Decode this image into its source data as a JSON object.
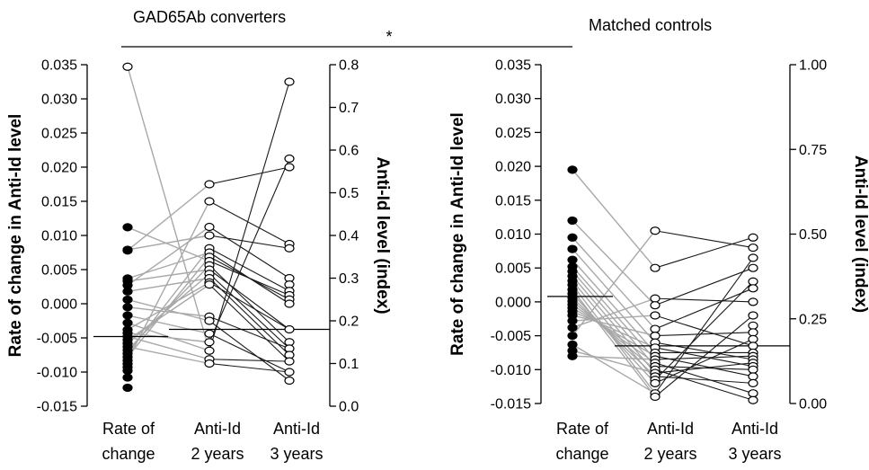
{
  "chart_data": [
    {
      "type": "scatter",
      "title": "GAD65Ab converters",
      "categories": [
        "Rate of\nchange",
        "Anti-Id\n2 years",
        "Anti-Id\n3 years"
      ],
      "ylabel": "Rate of change in Anti-Id level",
      "ylim": [
        -0.015,
        0.035
      ],
      "yticks": [
        "0.035",
        "0.030",
        "0.025",
        "0.020",
        "0.015",
        "0.010",
        "0.005",
        "0.000",
        "-0.005",
        "-0.010",
        "-0.015"
      ],
      "y2label": "Anti-Id level (index)",
      "y2lim": [
        0.0,
        0.8
      ],
      "y2ticks": [
        "0.8",
        "0.7",
        "0.6",
        "0.5",
        "0.4",
        "0.3",
        "0.2",
        "0.1",
        "0.0"
      ],
      "rate_of_change": [
        0.0347,
        0.0112,
        0.0079,
        0.0078,
        0.0037,
        0.0033,
        0.0027,
        0.0018,
        0.0006,
        -0.0005,
        -0.0017,
        -0.0028,
        -0.0038,
        -0.0043,
        -0.0048,
        -0.0053,
        -0.0058,
        -0.0063,
        -0.0068,
        -0.0073,
        -0.0078,
        -0.0083,
        -0.0088,
        -0.0093,
        -0.0098,
        -0.0108,
        -0.0123
      ],
      "rate_median": -0.0048,
      "anti_id_2_years": [
        0.52,
        0.48,
        0.42,
        0.4,
        0.37,
        0.36,
        0.35,
        0.34,
        0.33,
        0.32,
        0.31,
        0.3,
        0.29,
        0.285,
        0.21,
        0.2,
        0.17,
        0.15,
        0.13,
        0.11,
        0.1
      ],
      "anti_id_3_years": [
        0.76,
        0.58,
        0.56,
        0.38,
        0.37,
        0.3,
        0.285,
        0.27,
        0.26,
        0.25,
        0.24,
        0.18,
        0.15,
        0.135,
        0.12,
        0.105,
        0.08,
        0.06
      ],
      "anti_id_median": 0.18,
      "gray_links": [
        [
          0,
          18
        ],
        [
          1,
          7
        ],
        [
          2,
          3
        ],
        [
          3,
          0
        ],
        [
          4,
          5
        ],
        [
          5,
          9
        ],
        [
          6,
          2
        ],
        [
          7,
          11
        ],
        [
          8,
          15
        ],
        [
          9,
          14
        ],
        [
          10,
          16
        ],
        [
          11,
          18
        ],
        [
          12,
          12
        ],
        [
          13,
          17
        ],
        [
          14,
          19
        ],
        [
          15,
          13
        ],
        [
          16,
          10
        ],
        [
          17,
          20
        ],
        [
          18,
          8
        ],
        [
          19,
          4
        ],
        [
          20,
          6
        ],
        [
          21,
          1
        ]
      ],
      "black_links": [
        [
          0,
          2
        ],
        [
          1,
          3
        ],
        [
          2,
          5
        ],
        [
          3,
          4
        ],
        [
          4,
          7
        ],
        [
          5,
          10
        ],
        [
          6,
          9
        ],
        [
          7,
          8
        ],
        [
          8,
          12
        ],
        [
          9,
          11
        ],
        [
          10,
          13
        ],
        [
          11,
          14
        ],
        [
          12,
          11
        ],
        [
          13,
          15
        ],
        [
          14,
          13
        ],
        [
          15,
          17
        ],
        [
          16,
          16
        ],
        [
          17,
          1
        ],
        [
          18,
          0
        ],
        [
          19,
          15
        ],
        [
          20,
          16
        ]
      ]
    },
    {
      "type": "scatter",
      "title": "Matched controls",
      "categories": [
        "Rate of\nchange",
        "Anti-Id\n2 years",
        "Anti-Id\n3 years"
      ],
      "ylabel": "Rate of change in Anti-Id level",
      "ylim": [
        -0.015,
        0.035
      ],
      "yticks": [
        "0.035",
        "0.030",
        "0.025",
        "0.020",
        "0.015",
        "0.010",
        "0.005",
        "0.000",
        "-0.005",
        "-0.010",
        "-0.015"
      ],
      "y2label": "Anti-Id level (index)",
      "y2lim": [
        0.0,
        1.0
      ],
      "y2ticks": [
        "1.00",
        "0.75",
        "0.50",
        "0.25",
        "0.00"
      ],
      "rate_of_change": [
        0.0195,
        0.012,
        0.0095,
        0.0078,
        0.0062,
        0.0052,
        0.0045,
        0.0038,
        0.0031,
        0.0025,
        0.0018,
        0.0012,
        0.0006,
        0.0001,
        -0.0004,
        -0.0009,
        -0.0014,
        -0.002,
        -0.0028,
        -0.0038,
        -0.005,
        -0.0063,
        -0.0072,
        -0.008
      ],
      "rate_median": 0.0008,
      "anti_id_2_years": [
        0.51,
        0.4,
        0.31,
        0.29,
        0.26,
        0.22,
        0.2,
        0.18,
        0.165,
        0.15,
        0.14,
        0.13,
        0.12,
        0.11,
        0.1,
        0.09,
        0.08,
        0.07,
        0.06,
        0.03,
        0.02
      ],
      "anti_id_3_years": [
        0.49,
        0.46,
        0.43,
        0.4,
        0.36,
        0.34,
        0.3,
        0.26,
        0.23,
        0.21,
        0.19,
        0.17,
        0.15,
        0.14,
        0.13,
        0.12,
        0.11,
        0.1,
        0.08,
        0.06,
        0.03,
        0.01
      ],
      "anti_id_median": 0.17,
      "gray_links": [
        [
          0,
          1
        ],
        [
          1,
          3
        ],
        [
          2,
          5
        ],
        [
          3,
          7
        ],
        [
          4,
          9
        ],
        [
          5,
          11
        ],
        [
          6,
          13
        ],
        [
          7,
          15
        ],
        [
          8,
          17
        ],
        [
          9,
          19
        ],
        [
          10,
          20
        ],
        [
          11,
          18
        ],
        [
          12,
          16
        ],
        [
          13,
          14
        ],
        [
          14,
          12
        ],
        [
          15,
          10
        ],
        [
          16,
          8
        ],
        [
          17,
          6
        ],
        [
          18,
          4
        ],
        [
          19,
          2
        ],
        [
          20,
          0
        ],
        [
          21,
          19
        ],
        [
          22,
          15
        ],
        [
          23,
          11
        ]
      ],
      "black_links": [
        [
          0,
          1
        ],
        [
          1,
          0
        ],
        [
          2,
          6
        ],
        [
          3,
          3
        ],
        [
          4,
          11
        ],
        [
          5,
          5
        ],
        [
          6,
          9
        ],
        [
          7,
          14
        ],
        [
          8,
          16
        ],
        [
          9,
          12
        ],
        [
          10,
          18
        ],
        [
          11,
          13
        ],
        [
          12,
          20
        ],
        [
          13,
          17
        ],
        [
          14,
          21
        ],
        [
          15,
          15
        ],
        [
          16,
          19
        ],
        [
          17,
          4
        ],
        [
          18,
          10
        ],
        [
          19,
          2
        ],
        [
          20,
          7
        ]
      ]
    }
  ],
  "significance": {
    "marker": "*"
  }
}
